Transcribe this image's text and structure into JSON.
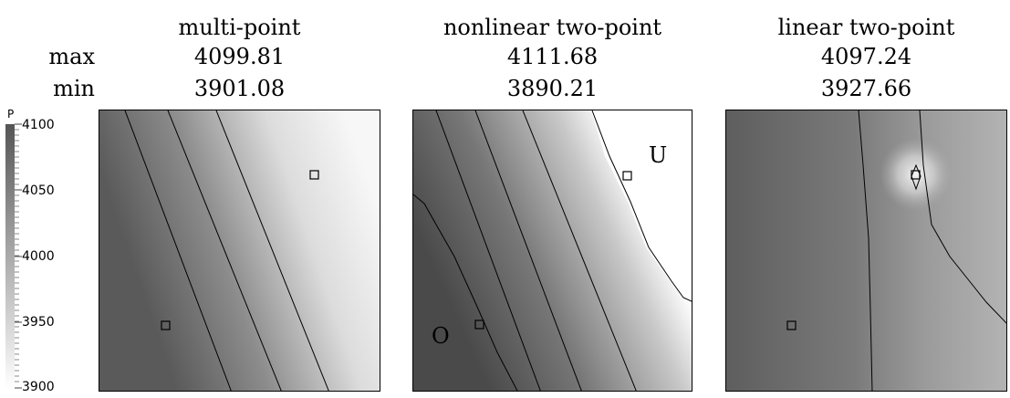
{
  "rows": {
    "max_label": "max",
    "min_label": "min"
  },
  "panels": [
    {
      "title": "multi-point",
      "max": "4099.81",
      "min": "3901.08"
    },
    {
      "title": "nonlinear two-point",
      "max": "4111.68",
      "min": "3890.21",
      "markers": {
        "upper": "U",
        "lower": "O"
      }
    },
    {
      "title": "linear two-point",
      "max": "4097.24",
      "min": "3927.66"
    }
  ],
  "colorbar": {
    "title": "P",
    "ticks": [
      "4100",
      "4050",
      "4000",
      "3950",
      "3900"
    ],
    "range": [
      3900,
      4100
    ],
    "colors": {
      "high": "#555555",
      "low": "#ffffff"
    }
  }
}
